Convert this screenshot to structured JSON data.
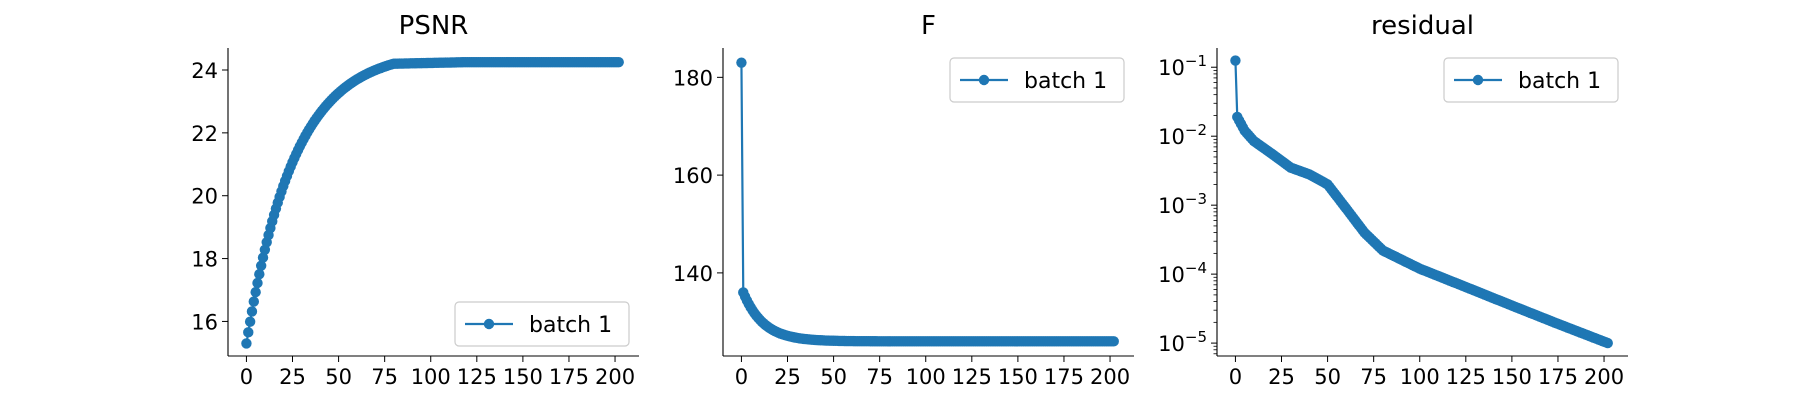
{
  "style": {
    "series_color": "#1f77b4",
    "axis_color": "#000000",
    "legend_border_color": "#cccccc"
  },
  "chart_data": [
    {
      "type": "line",
      "title": "PSNR",
      "xlabel": "",
      "ylabel": "",
      "xlim": [
        -10,
        213
      ],
      "ylim": [
        14.9,
        24.7
      ],
      "xticks": [
        0,
        25,
        50,
        75,
        100,
        125,
        150,
        175,
        200
      ],
      "yticks": [
        16,
        18,
        20,
        22,
        24
      ],
      "yscale": "linear",
      "grid": false,
      "legend": {
        "location": "lower right",
        "entries": [
          "batch 1"
        ]
      },
      "series": [
        {
          "name": "batch 1",
          "marker": "circle",
          "curve": "psnr",
          "x_range": [
            0,
            202
          ],
          "key_points": [
            [
              0,
              15.3
            ],
            [
              5,
              16.3
            ],
            [
              10,
              17.4
            ],
            [
              20,
              19.4
            ],
            [
              30,
              21.1
            ],
            [
              40,
              22.5
            ],
            [
              50,
              23.5
            ],
            [
              60,
              24.0
            ],
            [
              70,
              24.15
            ],
            [
              80,
              24.2
            ],
            [
              120,
              24.25
            ],
            [
              202,
              24.25
            ]
          ]
        }
      ]
    },
    {
      "type": "line",
      "title": "F",
      "xlabel": "",
      "ylabel": "",
      "xlim": [
        -10,
        213
      ],
      "ylim": [
        123,
        186
      ],
      "xticks": [
        0,
        25,
        50,
        75,
        100,
        125,
        150,
        175,
        200
      ],
      "yticks": [
        140,
        160,
        180
      ],
      "yscale": "linear",
      "grid": false,
      "legend": {
        "location": "upper right",
        "entries": [
          "batch 1"
        ]
      },
      "series": [
        {
          "name": "batch 1",
          "marker": "circle",
          "curve": "objective",
          "x_range": [
            0,
            202
          ],
          "key_points": [
            [
              0,
              183
            ],
            [
              1,
              136
            ],
            [
              3,
              134
            ],
            [
              5,
              132
            ],
            [
              10,
              130
            ],
            [
              20,
              128
            ],
            [
              30,
              127
            ],
            [
              50,
              126.2
            ],
            [
              60,
              126
            ],
            [
              202,
              126
            ]
          ]
        }
      ]
    },
    {
      "type": "line",
      "title": "residual",
      "xlabel": "",
      "ylabel": "",
      "xlim": [
        -10,
        213
      ],
      "ylim": [
        6.5e-06,
        0.19
      ],
      "xticks": [
        0,
        25,
        50,
        75,
        100,
        125,
        150,
        175,
        200
      ],
      "ytick_values": [
        1e-05,
        0.0001,
        0.001,
        0.01,
        0.1
      ],
      "ytick_labels": [
        {
          "base": "10",
          "exp": "−5"
        },
        {
          "base": "10",
          "exp": "−4"
        },
        {
          "base": "10",
          "exp": "−3"
        },
        {
          "base": "10",
          "exp": "−2"
        },
        {
          "base": "10",
          "exp": "−1"
        }
      ],
      "yscale": "log",
      "grid": false,
      "legend": {
        "location": "upper right",
        "entries": [
          "batch 1"
        ]
      },
      "series": [
        {
          "name": "batch 1",
          "marker": "circle",
          "curve": "residual",
          "x_range": [
            0,
            202
          ],
          "key_points": [
            [
              0,
              0.125
            ],
            [
              1,
              0.019
            ],
            [
              5,
              0.012
            ],
            [
              10,
              0.0085
            ],
            [
              20,
              0.0055
            ],
            [
              30,
              0.0035
            ],
            [
              40,
              0.0028
            ],
            [
              50,
              0.002
            ],
            [
              60,
              0.0009
            ],
            [
              70,
              0.0004
            ],
            [
              80,
              0.00022
            ],
            [
              100,
              0.00012
            ],
            [
              125,
              6.5e-05
            ],
            [
              150,
              3.5e-05
            ],
            [
              175,
              1.9e-05
            ],
            [
              202,
              1e-05
            ]
          ]
        }
      ]
    }
  ]
}
